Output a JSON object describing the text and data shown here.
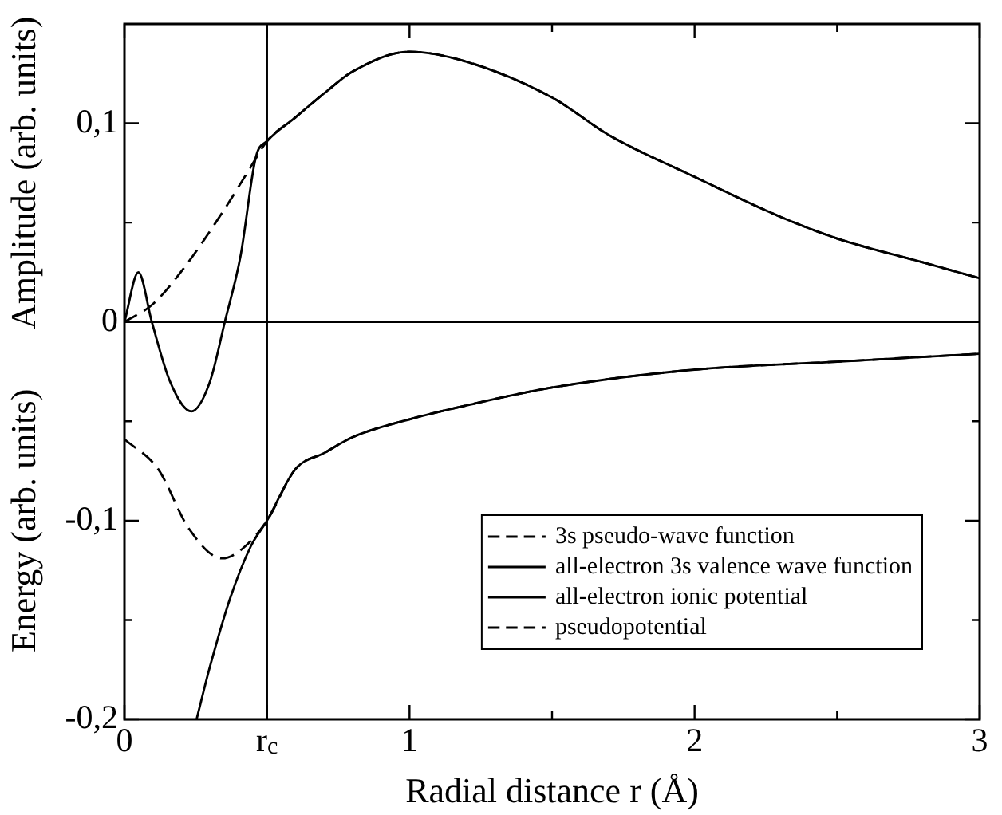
{
  "chart_data": {
    "type": "line",
    "xlabel": "Radial distance r (Å)",
    "ylabel": "Amplitude (arb. units)",
    "annotations": [
      "Energy (arb. units)"
    ],
    "xlim": [
      0,
      3
    ],
    "ylim": [
      -0.2,
      0.15
    ],
    "xticks": [
      0,
      {
        "value": 0.5,
        "label": "r$_{c}$"
      },
      1,
      {
        "value": 1.5,
        "label": null
      },
      2,
      {
        "value": 2.5,
        "label": null
      },
      3
    ],
    "yticks": [
      {
        "value": -0.2,
        "label": "-0,2"
      },
      {
        "value": -0.15,
        "label": null
      },
      {
        "value": -0.1,
        "label": "-0,1"
      },
      {
        "value": -0.05,
        "label": null
      },
      0,
      {
        "value": 0.05,
        "label": null
      },
      {
        "value": 0.1,
        "label": "0,1"
      }
    ],
    "ref_lines": [
      {
        "axis": "x",
        "value": 0.5,
        "color": "#000000"
      },
      {
        "axis": "y",
        "value": 0,
        "color": "#000000"
      }
    ],
    "grid": false,
    "legend": "bottom right",
    "marker": "none",
    "series": [
      {
        "name": "3s pseudo-wave function",
        "color": "#000000",
        "line_style": "dashed",
        "x": [
          0,
          0.1,
          0.208,
          0.352,
          0.443,
          0.5,
          0.6,
          0.7,
          0.8,
          1,
          1.2,
          1.5,
          1.7,
          2,
          2.3,
          2.5,
          2.8,
          3
        ],
        "values": [
          0,
          0.009,
          0.027,
          0.057,
          0.078,
          0.091,
          0.103,
          0.115,
          0.126,
          0.136,
          0.131,
          0.113,
          0.094,
          0.073,
          0.053,
          0.042,
          0.03,
          0.022
        ]
      },
      {
        "name": "all-electron 3s valence wave function",
        "color": "#000000",
        "line_style": "solid",
        "x": [
          0,
          0.049,
          0.096,
          0.16,
          0.235,
          0.3,
          0.352,
          0.407,
          0.461,
          0.5,
          0.6,
          0.7,
          0.8,
          1,
          1.2,
          1.5,
          1.7,
          2,
          2.3,
          2.5,
          2.8,
          3
        ],
        "values": [
          0,
          0.025,
          0,
          -0.03,
          -0.045,
          -0.03,
          0,
          0.033,
          0.083,
          0.091,
          0.103,
          0.115,
          0.126,
          0.136,
          0.131,
          0.113,
          0.094,
          0.073,
          0.053,
          0.042,
          0.03,
          0.022
        ]
      },
      {
        "name": "all-electron ionic potential",
        "color": "#000000",
        "line_style": "solid",
        "x": [
          0.253,
          0.299,
          0.371,
          0.443,
          0.5,
          0.6,
          0.7,
          0.8,
          1,
          1.2,
          1.5,
          2,
          2.5,
          3
        ],
        "values": [
          -0.2,
          -0.174,
          -0.139,
          -0.113,
          -0.1,
          -0.074,
          -0.066,
          -0.058,
          -0.049,
          -0.042,
          -0.033,
          -0.024,
          -0.02,
          -0.016
        ]
      },
      {
        "name": "pseudopotential",
        "color": "#000000",
        "line_style": "dashed",
        "x": [
          0,
          0.118,
          0.226,
          0.343,
          0.415,
          0.5,
          0.6,
          0.7,
          0.8,
          1,
          1.2,
          1.5,
          2,
          2.5,
          3
        ],
        "values": [
          -0.059,
          -0.074,
          -0.104,
          -0.119,
          -0.114,
          -0.1,
          -0.074,
          -0.066,
          -0.058,
          -0.049,
          -0.042,
          -0.033,
          -0.024,
          -0.02,
          -0.016
        ]
      }
    ]
  }
}
